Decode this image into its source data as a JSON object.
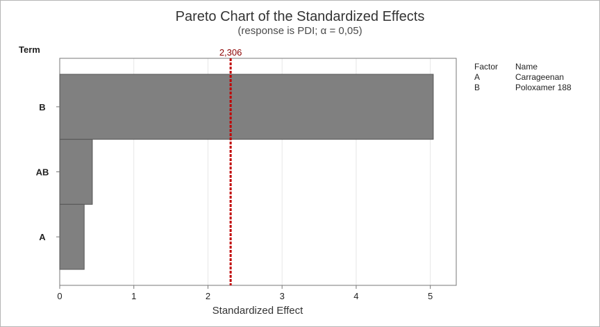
{
  "chart_data": {
    "type": "bar",
    "orientation": "horizontal",
    "title": "Pareto Chart of the Standardized Effects",
    "subtitle": "(response is PDI; α = 0,05)",
    "xlabel": "Standardized Effect",
    "ylabel": "Term",
    "categories": [
      "B",
      "AB",
      "A"
    ],
    "values": [
      5.04,
      0.44,
      0.33
    ],
    "xlim": [
      0,
      5.35
    ],
    "xticks": [
      0,
      1,
      2,
      3,
      4,
      5
    ],
    "grid": true,
    "reference_line": {
      "value": 2.306,
      "label": "2,306"
    },
    "legend": {
      "placement": "right",
      "headers": [
        "Factor",
        "Name"
      ],
      "rows": [
        {
          "factor": "A",
          "name": "Carrageenan"
        },
        {
          "factor": "B",
          "name": "Poloxamer 188"
        }
      ]
    }
  },
  "colors": {
    "bar_fill": "#808080",
    "bar_stroke": "#555555",
    "reference_line": "#c00000",
    "grid": "#e6e6e6",
    "axis": "#777777"
  }
}
